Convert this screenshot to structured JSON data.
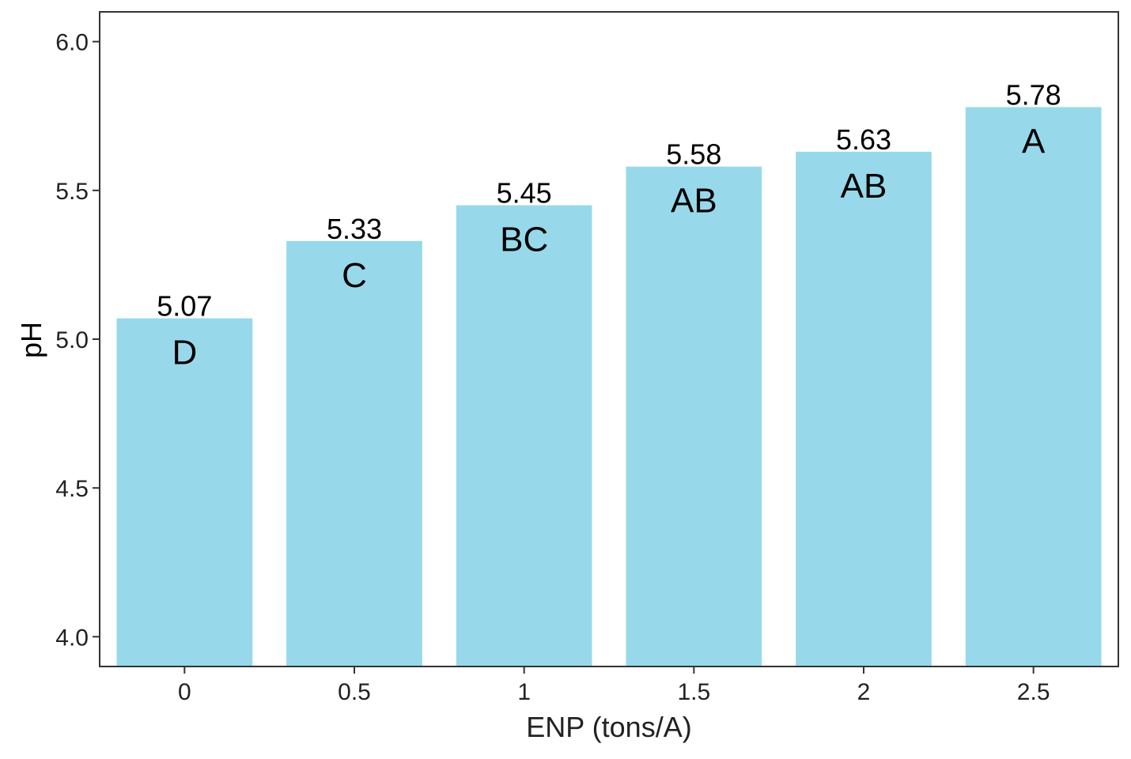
{
  "chart_data": {
    "type": "bar",
    "title": "",
    "xlabel": "ENP (tons/A)",
    "ylabel": "pH",
    "categories": [
      "0",
      "0.5",
      "1",
      "1.5",
      "2",
      "2.5"
    ],
    "values": [
      5.07,
      5.33,
      5.45,
      5.58,
      5.63,
      5.78
    ],
    "value_labels": [
      "5.07",
      "5.33",
      "5.45",
      "5.58",
      "5.63",
      "5.78"
    ],
    "group_letters": [
      "D",
      "C",
      "BC",
      "AB",
      "AB",
      "A"
    ],
    "ylim": [
      3.9,
      6.1
    ],
    "yticks": [
      4.0,
      4.5,
      5.0,
      5.5,
      6.0
    ],
    "ytick_labels": [
      "4.0",
      "4.5",
      "5.0",
      "5.5",
      "6.0"
    ],
    "grid": false,
    "legend": "none",
    "colors": {
      "bar": "#97d9ea",
      "axis": "#333333",
      "text": "#000000",
      "tick_text": "#222222"
    }
  }
}
